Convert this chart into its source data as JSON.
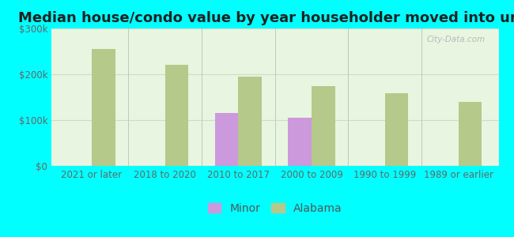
{
  "title": "Median house/condo value by year householder moved into unit",
  "categories": [
    "2021 or later",
    "2018 to 2020",
    "2010 to 2017",
    "2000 to 2009",
    "1990 to 1999",
    "1989 or earlier"
  ],
  "minor_values": [
    0,
    0,
    115000,
    105000,
    0,
    0
  ],
  "alabama_values": [
    255000,
    220000,
    195000,
    175000,
    158000,
    140000
  ],
  "minor_color": "#cc99dd",
  "alabama_color": "#b5c98a",
  "background_color": "#00ffff",
  "plot_bg_color": "#e8f5e0",
  "ylim": [
    0,
    300000
  ],
  "yticks": [
    0,
    100000,
    200000,
    300000
  ],
  "ytick_labels": [
    "$0",
    "$100k",
    "$200k",
    "$300k"
  ],
  "bar_width": 0.32,
  "legend_minor": "Minor",
  "legend_alabama": "Alabama",
  "watermark": "City-Data.com",
  "title_fontsize": 13,
  "tick_fontsize": 8.5,
  "legend_fontsize": 10
}
